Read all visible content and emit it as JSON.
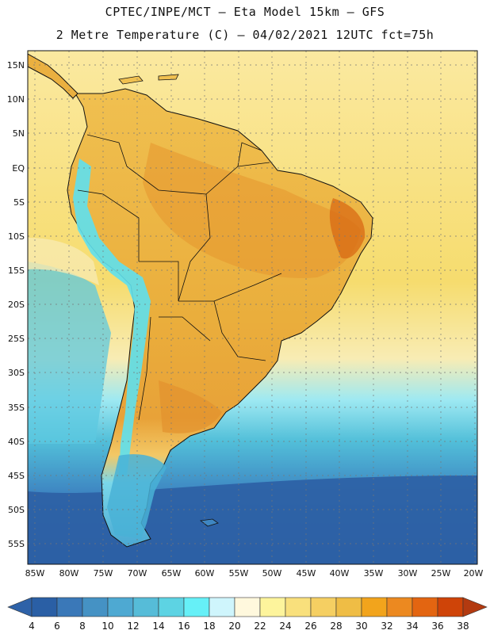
{
  "title": {
    "line1": "CPTEC/INPE/MCT –  Eta Model 15km – GFS",
    "line2": "2 Metre Temperature (C) – 04/02/2021 12UTC fct=75h"
  },
  "map": {
    "variable": "2 Metre Temperature",
    "units": "C",
    "lat_labels": [
      "15N",
      "10N",
      "5N",
      "EQ",
      "5S",
      "10S",
      "15S",
      "20S",
      "25S",
      "30S",
      "35S",
      "40S",
      "45S",
      "50S",
      "55S"
    ],
    "lon_labels": [
      "85W",
      "80W",
      "75W",
      "70W",
      "65W",
      "60W",
      "55W",
      "50W",
      "45W",
      "40W",
      "35W",
      "30W",
      "25W",
      "20W"
    ]
  },
  "colorbar": {
    "labels": [
      "4",
      "6",
      "8",
      "10",
      "12",
      "14",
      "16",
      "18",
      "20",
      "22",
      "24",
      "26",
      "28",
      "30",
      "32",
      "34",
      "36",
      "38"
    ],
    "colors": [
      "#2a5fa5",
      "#3a78b8",
      "#4592c4",
      "#4ea9d2",
      "#56bcd8",
      "#5dd3e3",
      "#66f0f7",
      "#cff5fc",
      "#fff8dd",
      "#fdf49c",
      "#f9e07c",
      "#f5cf62",
      "#efbd45",
      "#f2a41c",
      "#ec8920",
      "#e36511",
      "#cf4408",
      "#b5330a"
    ],
    "low_color": "#2e62a8",
    "high_color": "#b33a10"
  },
  "colors": {
    "ocean_tropical": "#f5dd70",
    "land_hot": "#ebad3c",
    "land_hotter": "#e08a28",
    "andes": "#66e6f2",
    "ocean_cold": "#2e62a8",
    "border": "#111111",
    "grid": "#777777"
  }
}
